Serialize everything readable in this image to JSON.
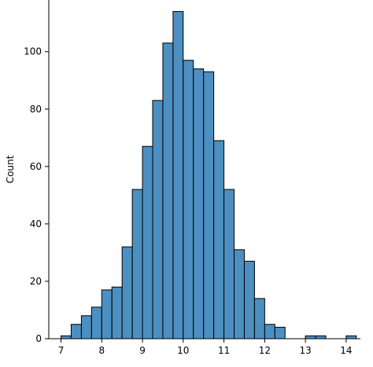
{
  "chart_data": {
    "type": "bar",
    "title": "",
    "xlabel": "",
    "ylabel": "Count",
    "xlim": [
      6.7,
      14.35
    ],
    "ylim": [
      0,
      118
    ],
    "grid": false,
    "bar_color": "#4c8fc0",
    "edge_color": "#000000",
    "bin_width": 0.25,
    "bin_starts": [
      7.0,
      7.25,
      7.5,
      7.75,
      8.0,
      8.25,
      8.5,
      8.75,
      9.0,
      9.25,
      9.5,
      9.75,
      10.0,
      10.25,
      10.5,
      10.75,
      11.0,
      11.25,
      11.5,
      11.75,
      12.0,
      12.25,
      12.5,
      12.75,
      13.0,
      13.25,
      13.5,
      13.75,
      14.0
    ],
    "values": [
      1,
      5,
      8,
      11,
      17,
      18,
      32,
      52,
      67,
      83,
      103,
      114,
      97,
      94,
      93,
      69,
      52,
      31,
      27,
      14,
      5,
      4,
      0,
      0,
      1,
      1,
      0,
      0,
      1
    ],
    "x_ticks": [
      7,
      8,
      9,
      10,
      11,
      12,
      13,
      14
    ],
    "x_tick_labels": [
      "7",
      "8",
      "9",
      "10",
      "11",
      "12",
      "13",
      "14"
    ],
    "y_ticks": [
      0,
      20,
      40,
      60,
      80,
      100
    ],
    "y_tick_labels": [
      "0",
      "20",
      "40",
      "60",
      "80",
      "100"
    ]
  }
}
